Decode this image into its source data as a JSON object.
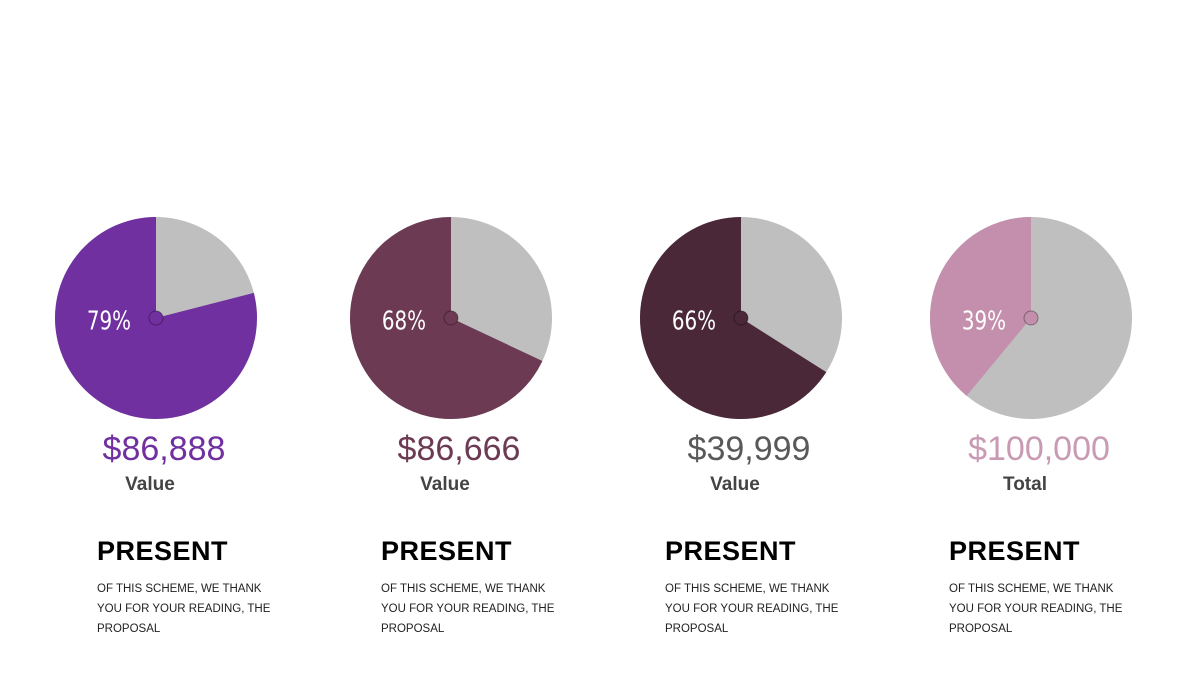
{
  "chart_data": [
    {
      "type": "pie",
      "values": [
        79
      ],
      "value_labels": [
        "79%"
      ],
      "color": "#7030a0",
      "amount": "$86,888",
      "amount_color": "#7030a0",
      "caption": "Value"
    },
    {
      "type": "pie",
      "values": [
        68
      ],
      "value_labels": [
        "68%"
      ],
      "color": "#6d3a53",
      "amount": "$86,666",
      "amount_color": "#6d3a53",
      "caption": "Value"
    },
    {
      "type": "pie",
      "values": [
        66
      ],
      "value_labels": [
        "66%"
      ],
      "color": "#4a2838",
      "amount": "$39,999",
      "amount_color": "#595959",
      "caption": "Value"
    },
    {
      "type": "pie",
      "values": [
        39
      ],
      "value_labels": [
        "39%"
      ],
      "color": "#c48fac",
      "amount": "$100,000",
      "amount_color": "#c99ab3",
      "caption": "Total"
    }
  ],
  "cards": [
    {
      "title": "PRESENT",
      "text": "OF THIS SCHEME, WE THANK YOU FOR YOUR READING, THE PROPOSAL"
    },
    {
      "title": "PRESENT",
      "text": "OF THIS SCHEME, WE THANK YOU FOR YOUR READING, THE PROPOSAL"
    },
    {
      "title": "PRESENT",
      "text": "OF THIS SCHEME, WE THANK YOU FOR YOUR READING, THE PROPOSAL"
    },
    {
      "title": "PRESENT",
      "text": "OF THIS SCHEME, WE THANK YOU FOR YOUR READING, THE PROPOSAL"
    }
  ]
}
